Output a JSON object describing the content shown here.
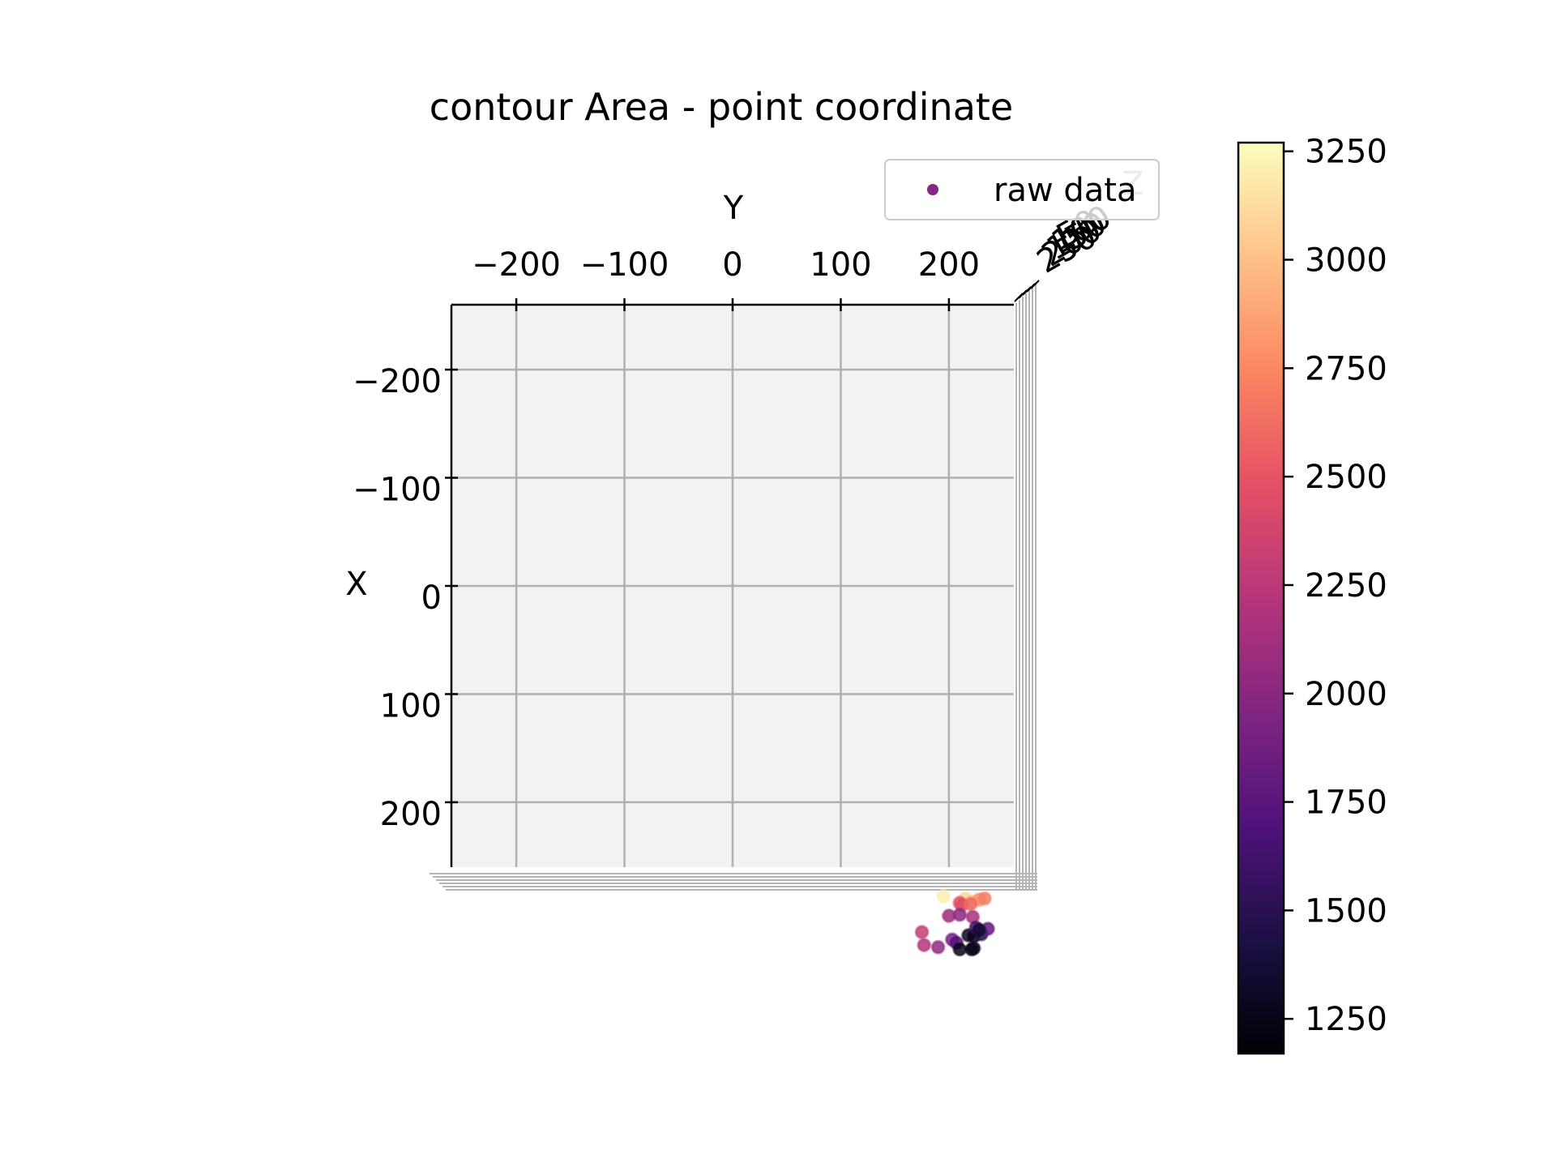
{
  "chart_data": {
    "type": "scatter",
    "title": "contour Area - point coordinate",
    "xlabel": "X",
    "ylabel": "Y",
    "zlabel": "Z",
    "view": "top-down 3D scatter (Y horizontal on top, X vertical on left)",
    "x_ticks": [
      "−200",
      "−100",
      "0",
      "100",
      "200"
    ],
    "y_ticks": [
      "−200",
      "−100",
      "0",
      "100",
      "200"
    ],
    "z_ticks": [
      "250",
      "200",
      "150",
      "100",
      "50"
    ],
    "y_tick_values": [
      -200,
      -100,
      0,
      100,
      200
    ],
    "x_tick_values": [
      -200,
      -100,
      0,
      100,
      200
    ],
    "xlim": [
      -260,
      260
    ],
    "ylim": [
      -260,
      260
    ],
    "legend": {
      "label": "raw data",
      "placement": "upper-right",
      "color": "#862781"
    },
    "colorbar": {
      "cmap": "magma",
      "range": [
        1170,
        3270
      ],
      "ticks": [
        3250,
        3000,
        2750,
        2500,
        2250,
        2000,
        1750,
        1500,
        1250
      ],
      "tick_labels": [
        "3250",
        "3000",
        "2750",
        "2500",
        "2250",
        "2000",
        "1750",
        "1500",
        "1250"
      ]
    },
    "points": [
      {
        "y": 195,
        "x": 287,
        "c": 3200
      },
      {
        "y": 215,
        "x": 289,
        "c": 3100
      },
      {
        "y": 222,
        "x": 292,
        "c": 3000
      },
      {
        "y": 228,
        "x": 290,
        "c": 2800
      },
      {
        "y": 233,
        "x": 289,
        "c": 2700
      },
      {
        "y": 210,
        "x": 293,
        "c": 2500
      },
      {
        "y": 212,
        "x": 295,
        "c": 2450
      },
      {
        "y": 220,
        "x": 294,
        "c": 2600
      },
      {
        "y": 200,
        "x": 305,
        "c": 2100
      },
      {
        "y": 210,
        "x": 304,
        "c": 2000
      },
      {
        "y": 222,
        "x": 306,
        "c": 2150
      },
      {
        "y": 175,
        "x": 320,
        "c": 2300
      },
      {
        "y": 177,
        "x": 332,
        "c": 2200
      },
      {
        "y": 190,
        "x": 334,
        "c": 2050
      },
      {
        "y": 203,
        "x": 327,
        "c": 1900
      },
      {
        "y": 207,
        "x": 330,
        "c": 1700
      },
      {
        "y": 218,
        "x": 323,
        "c": 1300
      },
      {
        "y": 223,
        "x": 324,
        "c": 1250
      },
      {
        "y": 230,
        "x": 322,
        "c": 1450
      },
      {
        "y": 236,
        "x": 317,
        "c": 1800
      },
      {
        "y": 225,
        "x": 316,
        "c": 1600
      },
      {
        "y": 228,
        "x": 318,
        "c": 1350
      },
      {
        "y": 210,
        "x": 336,
        "c": 1250
      },
      {
        "y": 221,
        "x": 336,
        "c": 1200
      },
      {
        "y": 223,
        "x": 335,
        "c": 1270
      }
    ]
  }
}
